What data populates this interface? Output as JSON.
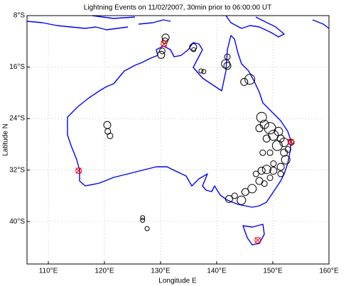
{
  "chart_data": {
    "type": "scatter",
    "title": "Lightning Events on 11/02/2007, 30min prior to 06:00:00 UT",
    "x_label": "Longitude E",
    "y_label": "Latitude N",
    "xlim": [
      106.2,
      160
    ],
    "ylim": [
      -46.6,
      -8
    ],
    "xticks": [
      {
        "value": 110,
        "label": "110°E"
      },
      {
        "value": 120,
        "label": "120°E"
      },
      {
        "value": 130,
        "label": "130°E"
      },
      {
        "value": 140,
        "label": "140°E"
      },
      {
        "value": 150,
        "label": "150°E"
      },
      {
        "value": 160,
        "label": "160°E"
      }
    ],
    "yticks": [
      {
        "value": -8,
        "label": "8°S"
      },
      {
        "value": -16,
        "label": "16°S"
      },
      {
        "value": -24,
        "label": "24°S"
      },
      {
        "value": -32,
        "label": "32°S"
      },
      {
        "value": -40,
        "label": "40°S"
      }
    ],
    "grid": true,
    "series": [
      {
        "color": "#000000",
        "marker": "circle",
        "x": [
          130.9,
          130.8,
          130.1,
          130.3,
          135.8,
          135.9,
          137.2,
          137.7,
          141.6,
          141.9,
          141.9,
          145.9,
          144.9,
          148.0,
          148.5,
          149.5,
          150.1,
          151.0,
          151.4,
          152.0,
          150.8,
          148.9,
          147.6,
          152.0,
          152.7,
          149.5,
          148.2,
          152.3,
          151.4,
          150.1,
          148.9,
          148.0,
          147.0,
          151.4,
          147.6,
          149.5,
          146.3,
          145.1,
          144.4,
          142.2,
          143.2,
          148.5,
          150.1,
          153.3,
          120.5,
          120.6,
          121.0,
          126.8,
          126.8,
          127.6
        ],
        "y": [
          -11.4,
          -11.9,
          -14.1,
          -13.5,
          -12.9,
          -13.3,
          -16.6,
          -16.7,
          -15.5,
          -15.8,
          -14.4,
          -17.9,
          -18.3,
          -23.8,
          -24.9,
          -25.5,
          -26.6,
          -26.0,
          -27.1,
          -27.7,
          -28.2,
          -27.1,
          -25.5,
          -29.3,
          -28.8,
          -29.3,
          -29.3,
          -30.4,
          -31.5,
          -32.1,
          -31.9,
          -32.1,
          -32.6,
          -32.6,
          -33.7,
          -33.2,
          -34.9,
          -35.4,
          -36.7,
          -36.5,
          -36.0,
          -34.1,
          -31.0,
          -27.7,
          -25.0,
          -26.0,
          -26.7,
          -39.4,
          -39.8,
          -41.1
        ],
        "sizes": [
          5,
          4,
          5,
          4,
          5,
          3,
          3,
          3,
          6,
          5,
          4,
          7,
          5,
          7,
          6,
          8,
          7,
          6,
          5,
          6,
          7,
          5,
          5,
          5,
          4,
          4,
          4,
          6,
          5,
          5,
          6,
          5,
          4,
          4,
          5,
          4,
          6,
          5,
          6,
          5,
          4,
          4,
          4,
          4,
          5,
          4,
          4,
          3,
          3,
          3
        ]
      },
      {
        "color": "#ff0000",
        "marker": "circle-x",
        "x": [
          130.6,
          115.4,
          153.2,
          147.3
        ],
        "y": [
          -12.4,
          -32.1,
          -27.6,
          -42.9
        ]
      }
    ]
  }
}
